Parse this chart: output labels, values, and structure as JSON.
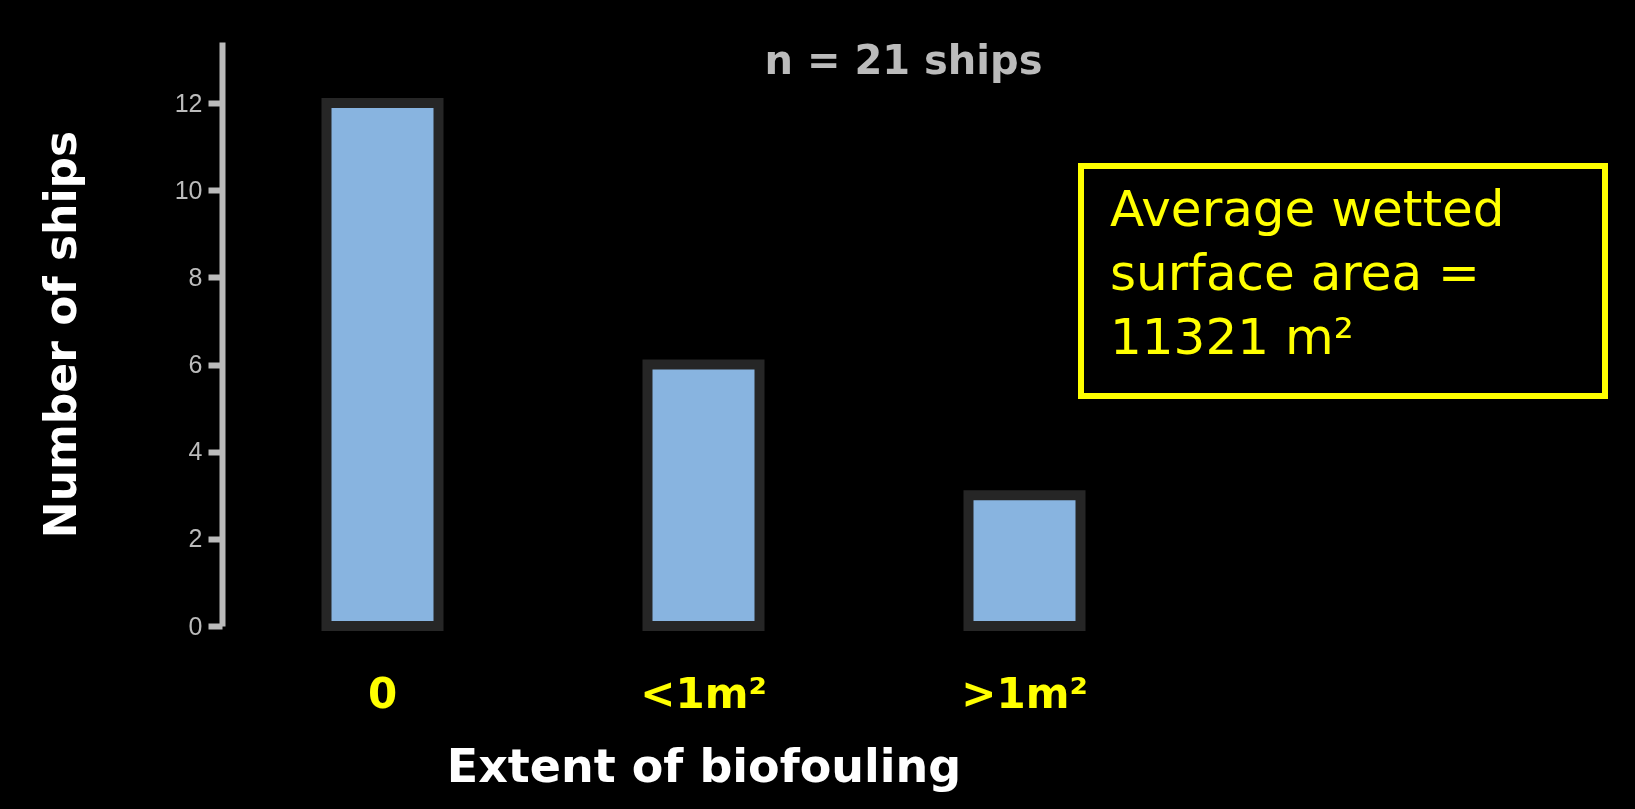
{
  "chart_data": {
    "type": "bar",
    "title": "n = 21 ships",
    "xlabel": "Extent of biofouling",
    "ylabel": "Number of ships",
    "categories": [
      "0",
      "<1m²",
      ">1m²"
    ],
    "values": [
      12,
      6,
      3
    ],
    "color": "#88b4e0",
    "ylim": [
      0,
      13.4
    ],
    "yticks": [
      0,
      2,
      4,
      6,
      8,
      10,
      12
    ],
    "grid": false,
    "annotations": [
      "Average wetted\nsurface area =\n11321 m²"
    ]
  }
}
